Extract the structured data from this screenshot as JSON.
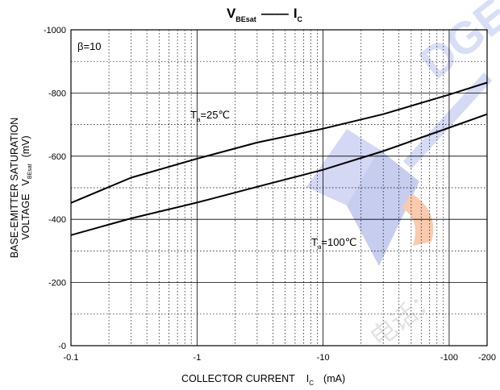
{
  "chart_data": {
    "type": "line",
    "title": {
      "left": "V",
      "left_sub": "BEsat",
      "dash": "——",
      "right": "I",
      "right_sub": "C"
    },
    "xlabel": {
      "text": "COLLECTOR CURRENT",
      "symbol": "I",
      "symbol_sub": "C",
      "unit": "(mA)"
    },
    "ylabel": {
      "line1": "BASE-EMITTER SATURATION",
      "line2_text": "VOLTAGE",
      "symbol": "V",
      "symbol_sub": "BEsat",
      "unit": "(mV)"
    },
    "x_scale": "log",
    "xlim": [
      -0.1,
      -200
    ],
    "ylim": [
      0,
      -1000
    ],
    "x_ticks": [
      -0.1,
      -1,
      -10,
      -100,
      -200
    ],
    "x_tick_labels": [
      "-0.1",
      "-1",
      "-10",
      "-100",
      "-200"
    ],
    "y_ticks": [
      0,
      -200,
      -400,
      -600,
      -800,
      -1000
    ],
    "y_tick_labels": [
      "-0",
      "-200",
      "-400",
      "-600",
      "-800",
      "-1000"
    ],
    "grid": true,
    "series": [
      {
        "name": "Ta=25°C",
        "color": "#000000",
        "x": [
          -0.1,
          -0.3,
          -1,
          -3,
          -10,
          -30,
          -100,
          -200
        ],
        "y": [
          -452,
          -532,
          -592,
          -643,
          -687,
          -733,
          -795,
          -833
        ]
      },
      {
        "name": "Ta=100°C",
        "color": "#000000",
        "x": [
          -0.1,
          -0.3,
          -1,
          -3,
          -10,
          -30,
          -100,
          -200
        ],
        "y": [
          -350,
          -403,
          -453,
          -503,
          -557,
          -616,
          -690,
          -733
        ]
      }
    ],
    "annotations": [
      {
        "id": "beta",
        "text": "β=10"
      },
      {
        "id": "t25",
        "prefix": "T",
        "sub": "a",
        "suffix": "=25℃"
      },
      {
        "id": "t100",
        "prefix": "T",
        "sub": "a",
        "suffix": "=100℃"
      }
    ],
    "watermark": {
      "text": "DGE",
      "text2": "电话：",
      "colors": [
        "#5b6fd0",
        "#f7b08a"
      ]
    }
  }
}
